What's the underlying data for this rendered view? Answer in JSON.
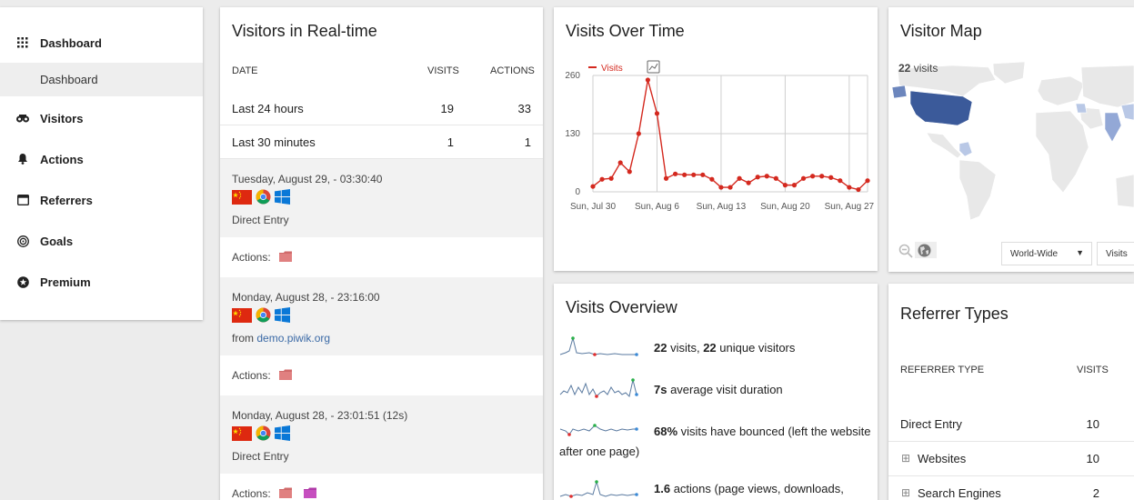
{
  "sidebar": {
    "items": [
      {
        "label": "Dashboard",
        "icon": "grid-icon"
      },
      {
        "label": "Visitors",
        "icon": "binoculars-icon"
      },
      {
        "label": "Actions",
        "icon": "bell-icon"
      },
      {
        "label": "Referrers",
        "icon": "window-icon"
      },
      {
        "label": "Goals",
        "icon": "target-icon"
      },
      {
        "label": "Premium",
        "icon": "star-circle-icon"
      }
    ],
    "sub_item": "Dashboard"
  },
  "realtime": {
    "title": "Visitors in Real-time",
    "headers": {
      "date": "DATE",
      "visits": "VISITS",
      "actions": "ACTIONS"
    },
    "rows": [
      {
        "label": "Last 24 hours",
        "visits": "19",
        "actions": "33"
      },
      {
        "label": "Last 30 minutes",
        "visits": "1",
        "actions": "1"
      }
    ],
    "visits": [
      {
        "datetime": "Tuesday, August 29, - 03:30:40",
        "source": "Direct Entry",
        "source_prefix": "",
        "actions_label": "Actions:"
      },
      {
        "datetime": "Monday, August 28, - 23:16:00",
        "source": "demo.piwik.org",
        "source_prefix": "from ",
        "actions_label": "Actions:"
      },
      {
        "datetime": "Monday, August 28, - 23:01:51 (12s)",
        "source": "Direct Entry",
        "source_prefix": "",
        "actions_label": "Actions:"
      }
    ]
  },
  "overtime": {
    "title": "Visits Over Time"
  },
  "chart_data": {
    "type": "line",
    "series": [
      {
        "name": "Visits",
        "color": "#d4291f",
        "values": [
          12,
          28,
          30,
          65,
          45,
          130,
          250,
          175,
          30,
          40,
          38,
          38,
          38,
          28,
          10,
          10,
          30,
          20,
          33,
          35,
          30,
          15,
          15,
          30,
          35,
          35,
          32,
          25,
          10,
          5,
          25
        ]
      }
    ],
    "x_tick_labels": [
      "Sun, Jul 30",
      "Sun, Aug 6",
      "Sun, Aug 13",
      "Sun, Aug 20",
      "Sun, Aug 27"
    ],
    "y_tick_labels": [
      "260",
      "130",
      "0"
    ],
    "ylim": [
      0,
      260
    ],
    "legend": "top-left",
    "grid": true
  },
  "map": {
    "title": "Visitor Map",
    "visits_count": "22",
    "visits_suffix": " visits",
    "region_select": "World-Wide",
    "metric_select": "Visits"
  },
  "overview": {
    "title": "Visits Overview",
    "rows": [
      {
        "bold": "22",
        "text": " visits, ",
        "bold2": "22",
        "text2": " unique visitors"
      },
      {
        "bold": "7s",
        "text": " average visit duration",
        "bold2": "",
        "text2": ""
      },
      {
        "bold": "68%",
        "text": " visits have bounced (left the website",
        "bold2": "",
        "text2": ""
      },
      {
        "bold": "1.6",
        "text": " actions (page views, downloads,",
        "bold2": "",
        "text2": ""
      }
    ],
    "wrap_text": "after one page)"
  },
  "referrers": {
    "title": "Referrer Types",
    "headers": {
      "type": "REFERRER TYPE",
      "visits": "VISITS"
    },
    "rows": [
      {
        "label": "Direct Entry",
        "visits": "10",
        "expandable": false
      },
      {
        "label": "Websites",
        "visits": "10",
        "expandable": true
      },
      {
        "label": "Search Engines",
        "visits": "2",
        "expandable": true
      }
    ]
  },
  "colors": {
    "chart_line": "#d4291f",
    "map_highlight": "#3b5a9a",
    "link": "#3b6aa6"
  }
}
